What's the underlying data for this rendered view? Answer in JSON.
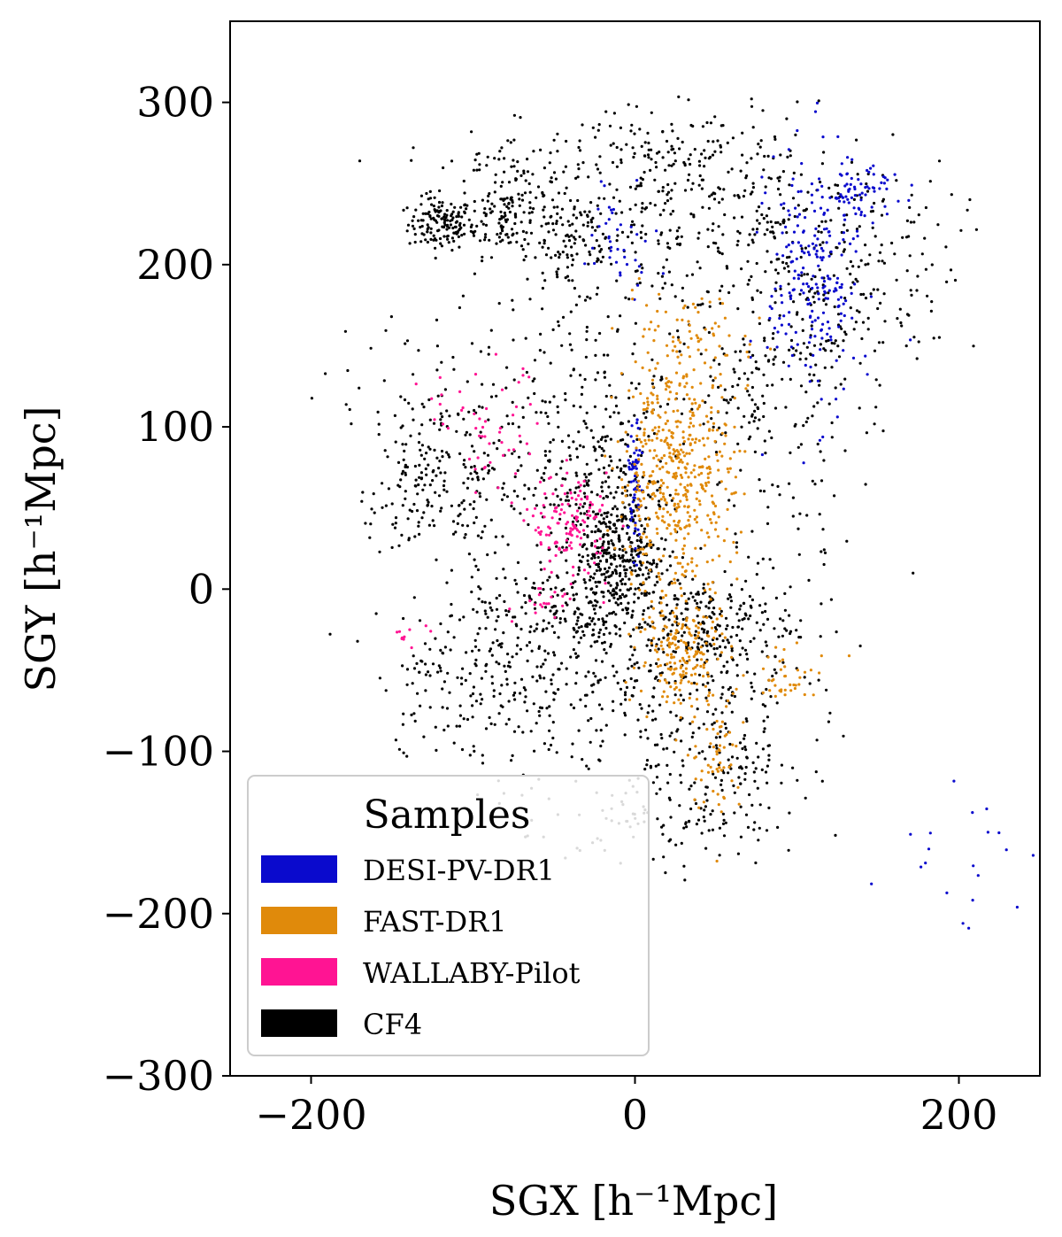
{
  "chart_data": {
    "type": "scatter",
    "title": "",
    "xlabel": "SGX [h⁻¹Mpc]",
    "ylabel": "SGY [h⁻¹Mpc]",
    "xlim": [
      -250,
      250
    ],
    "ylim": [
      -300,
      350
    ],
    "xticks": [
      -200,
      0,
      200
    ],
    "xtick_labels": [
      "−200",
      "0",
      "200"
    ],
    "yticks": [
      300,
      200,
      100,
      0,
      -100,
      -200,
      -300
    ],
    "ytick_labels": [
      "300",
      "200",
      "100",
      "0",
      "−100",
      "−200",
      "−300"
    ],
    "grid": false,
    "legend": {
      "title": "Samples",
      "placement": "lower-left",
      "entries": [
        {
          "label": "DESI-PV-DR1",
          "color": "#0a0acd"
        },
        {
          "label": "FAST-DR1",
          "color": "#e08a0b"
        },
        {
          "label": "WALLABY-Pilot",
          "color": "#ff1493"
        },
        {
          "label": "CF4",
          "color": "#000000"
        }
      ]
    },
    "series": [
      {
        "name": "CF4",
        "color": "#000000",
        "description_clusters": [
          {
            "cx": -120,
            "cy": 225,
            "sx": 10,
            "sy": 8,
            "n": 140
          },
          {
            "cx": -80,
            "cy": 230,
            "sx": 14,
            "sy": 12,
            "n": 120
          },
          {
            "cx": -40,
            "cy": 215,
            "sx": 18,
            "sy": 20,
            "n": 150
          },
          {
            "cx": 20,
            "cy": 230,
            "sx": 22,
            "sy": 30,
            "n": 160
          },
          {
            "cx": 80,
            "cy": 220,
            "sx": 28,
            "sy": 28,
            "n": 140
          },
          {
            "cx": 140,
            "cy": 210,
            "sx": 30,
            "sy": 30,
            "n": 120
          },
          {
            "cx": 30,
            "cy": 270,
            "sx": 50,
            "sy": 15,
            "n": 110
          },
          {
            "cx": -80,
            "cy": 260,
            "sx": 30,
            "sy": 10,
            "n": 60
          },
          {
            "cx": -20,
            "cy": 120,
            "sx": 40,
            "sy": 25,
            "n": 140
          },
          {
            "cx": 80,
            "cy": 120,
            "sx": 25,
            "sy": 25,
            "n": 120
          },
          {
            "cx": 120,
            "cy": 160,
            "sx": 30,
            "sy": 25,
            "n": 90
          },
          {
            "cx": -100,
            "cy": 70,
            "sx": 25,
            "sy": 25,
            "n": 140
          },
          {
            "cx": -140,
            "cy": 60,
            "sx": 12,
            "sy": 20,
            "n": 70
          },
          {
            "cx": -20,
            "cy": 60,
            "sx": 20,
            "sy": 25,
            "n": 220
          },
          {
            "cx": -10,
            "cy": 20,
            "sx": 15,
            "sy": 15,
            "n": 260
          },
          {
            "cx": 40,
            "cy": -20,
            "sx": 30,
            "sy": 15,
            "n": 220
          },
          {
            "cx": -40,
            "cy": -10,
            "sx": 30,
            "sy": 15,
            "n": 180
          },
          {
            "cx": -100,
            "cy": -50,
            "sx": 30,
            "sy": 25,
            "n": 180
          },
          {
            "cx": 0,
            "cy": -70,
            "sx": 50,
            "sy": 35,
            "n": 320
          },
          {
            "cx": 60,
            "cy": -100,
            "sx": 20,
            "sy": 30,
            "n": 120
          },
          {
            "cx": 20,
            "cy": -140,
            "sx": 30,
            "sy": 15,
            "n": 80
          },
          {
            "cx": 90,
            "cy": 40,
            "sx": 30,
            "sy": 40,
            "n": 60
          },
          {
            "cx": -130,
            "cy": 100,
            "sx": 30,
            "sy": 40,
            "n": 80
          }
        ]
      },
      {
        "name": "DESI-PV-DR1",
        "color": "#0a0acd",
        "description_clusters": [
          {
            "cx": 110,
            "cy": 190,
            "sx": 14,
            "sy": 40,
            "n": 220
          },
          {
            "cx": 140,
            "cy": 245,
            "sx": 12,
            "sy": 8,
            "n": 70
          },
          {
            "cx": 0,
            "cy": 60,
            "sx": 2,
            "sy": 20,
            "n": 60
          },
          {
            "cx": -10,
            "cy": 220,
            "sx": 12,
            "sy": 18,
            "n": 40
          },
          {
            "cx": 210,
            "cy": -165,
            "sx": 25,
            "sy": 25,
            "n": 20
          }
        ]
      },
      {
        "name": "FAST-DR1",
        "color": "#e08a0b",
        "description_clusters": [
          {
            "cx": 25,
            "cy": 70,
            "sx": 18,
            "sy": 40,
            "n": 520
          },
          {
            "cx": 30,
            "cy": -40,
            "sx": 14,
            "sy": 16,
            "n": 180
          },
          {
            "cx": 50,
            "cy": -100,
            "sx": 8,
            "sy": 20,
            "n": 60
          },
          {
            "cx": 95,
            "cy": -55,
            "sx": 15,
            "sy": 8,
            "n": 40
          },
          {
            "cx": 40,
            "cy": 160,
            "sx": 20,
            "sy": 12,
            "n": 50
          }
        ]
      },
      {
        "name": "WALLABY-Pilot",
        "color": "#ff1493",
        "description_clusters": [
          {
            "cx": -40,
            "cy": 40,
            "sx": 12,
            "sy": 15,
            "n": 130
          },
          {
            "cx": -85,
            "cy": 95,
            "sx": 12,
            "sy": 20,
            "n": 40
          },
          {
            "cx": -55,
            "cy": -10,
            "sx": 10,
            "sy": 5,
            "n": 20
          },
          {
            "cx": -140,
            "cy": -30,
            "sx": 8,
            "sy": 4,
            "n": 10
          },
          {
            "cx": -120,
            "cy": 120,
            "sx": 6,
            "sy": 10,
            "n": 10
          }
        ]
      }
    ]
  }
}
